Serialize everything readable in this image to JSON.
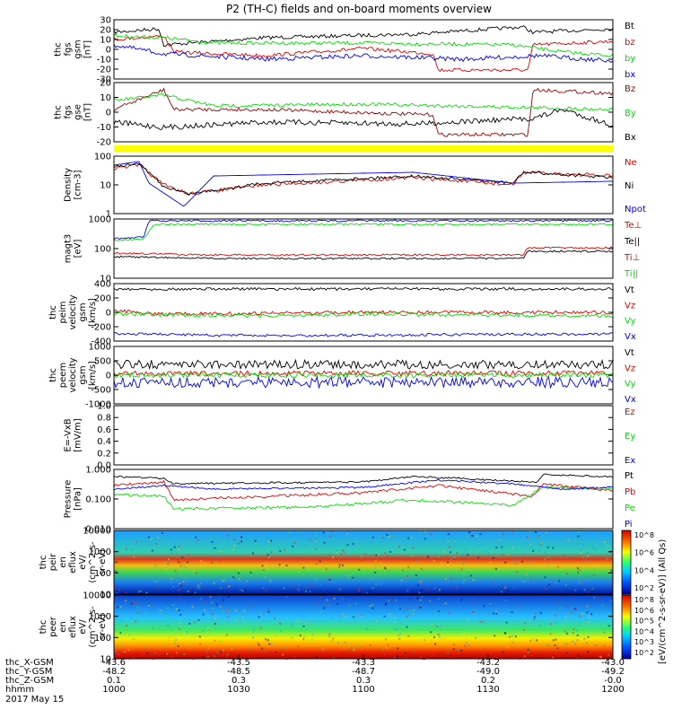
{
  "title": "P2 (TH-C) fields and on-board moments overview",
  "colors": {
    "black": "#000000",
    "red": "#e00000",
    "green": "#00dd00",
    "blue": "#0000ee",
    "darkred": "#9a0000",
    "yellow": "#ffff00",
    "navy": "#000080"
  },
  "panels": [
    {
      "ylabel": [
        "thc",
        "fgs",
        "gsm",
        "[nT]"
      ],
      "ticks": [
        "30",
        "20",
        "10",
        "0",
        "-10",
        "-20",
        "-30"
      ],
      "legend": [
        {
          "text": "Bt",
          "color": "black"
        },
        {
          "text": "bz",
          "color": "red"
        },
        {
          "text": "by",
          "color": "green"
        },
        {
          "text": "bx",
          "color": "blue"
        }
      ]
    },
    {
      "ylabel": [
        "thc",
        "fgs",
        "gse",
        "[nT]"
      ],
      "ticks": [
        "20",
        "10",
        "0",
        "-10",
        "-20"
      ],
      "legend": [
        {
          "text": "Bz",
          "color": "darkred"
        },
        {
          "text": "By",
          "color": "green"
        },
        {
          "text": "Bx",
          "color": "black"
        }
      ]
    },
    {
      "ylabel": [
        "Density",
        "[cm-3]"
      ],
      "ticks": [
        "100",
        "10",
        "1"
      ],
      "legend": [
        {
          "text": "Ne",
          "color": "red"
        },
        {
          "text": "Ni",
          "color": "black"
        },
        {
          "text": "Npot",
          "color": "blue"
        }
      ]
    },
    {
      "ylabel": [
        "magt3",
        "[eV]"
      ],
      "ticks": [
        "1000",
        "100",
        "10"
      ],
      "legend": [
        {
          "text": "Te⊥",
          "color": "red"
        },
        {
          "text": "Te||",
          "color": "black"
        },
        {
          "text": "Ti⊥",
          "color": "red"
        },
        {
          "text": "Ti||",
          "color": "green"
        }
      ]
    },
    {
      "ylabel": [
        "thc",
        "peim",
        "velocity",
        "gsm",
        "[km/s]"
      ],
      "ticks": [
        "400",
        "200",
        "0",
        "-200",
        "-400"
      ],
      "legend": [
        {
          "text": "Vt",
          "color": "black"
        },
        {
          "text": "Vz",
          "color": "red"
        },
        {
          "text": "Vy",
          "color": "green"
        },
        {
          "text": "Vx",
          "color": "blue"
        }
      ]
    },
    {
      "ylabel": [
        "thc",
        "peem",
        "velocity",
        "gsm",
        "[km/s]"
      ],
      "ticks": [
        "1000",
        "500",
        "0",
        "-500",
        "-1000"
      ],
      "legend": [
        {
          "text": "Vt",
          "color": "black"
        },
        {
          "text": "Vz",
          "color": "red"
        },
        {
          "text": "Vy",
          "color": "green"
        },
        {
          "text": "Vx",
          "color": "blue"
        }
      ]
    },
    {
      "ylabel": [
        "E=-VxB",
        "[mV/m]"
      ],
      "ticks": [
        "1.0",
        "0.8",
        "0.6",
        "0.4",
        "0.2",
        "0.0"
      ],
      "legend": [
        {
          "text": "Ez",
          "color": "red"
        },
        {
          "text": "Ey",
          "color": "green"
        },
        {
          "text": "Ex",
          "color": "blue"
        }
      ]
    },
    {
      "ylabel": [
        "Pressure",
        "[nPa]"
      ],
      "ticks": [
        "1.000",
        "0.100",
        "0.010"
      ],
      "legend": [
        {
          "text": "Pt",
          "color": "black"
        },
        {
          "text": "Pb",
          "color": "red"
        },
        {
          "text": "Pe",
          "color": "green"
        },
        {
          "text": "Pi",
          "color": "blue"
        }
      ]
    },
    {
      "ylabel": [
        "thc",
        "peir",
        "en",
        "eflux",
        "eV/",
        "(cm^2-s-",
        "sr-eV)"
      ],
      "ticks": [
        "10000",
        "1000",
        "100",
        "10"
      ],
      "legend": []
    },
    {
      "ylabel": [
        "thc",
        "peer",
        "en",
        "eflux",
        "eV/",
        "(cm^2-s-",
        "sr-eV)"
      ],
      "ticks": [
        "10000",
        "1000",
        "100",
        "10"
      ],
      "legend": []
    }
  ],
  "colorbar": {
    "label": "[eV/(cm^2-s-sr-eV)] (All Qs)",
    "upper_ticks": [
      "10^8",
      "10^6",
      "10^4",
      "10^2"
    ],
    "lower_ticks": [
      "10^8",
      "10^6",
      "10^5",
      "10^4",
      "10^3",
      "10^2"
    ]
  },
  "x_axis": {
    "row_labels": [
      "thc_X-GSM",
      "thc_Y-GSM",
      "thc_Z-GSM",
      "hhmm"
    ],
    "date": "2017 May 15",
    "columns": [
      [
        "-43.6",
        "-48.2",
        "0.1",
        "1000"
      ],
      [
        "-43.5",
        "-48.5",
        "0.3",
        "1030"
      ],
      [
        "-43.3",
        "-48.7",
        "0.3",
        "1100"
      ],
      [
        "-43.2",
        "-49.0",
        "0.2",
        "1130"
      ],
      [
        "-43.0",
        "-49.2",
        "-0.0",
        "1200"
      ]
    ]
  },
  "chart_data": {
    "type": "line",
    "title": "P2 (TH-C) fields and on-board moments overview",
    "x": [
      "1000",
      "1030",
      "1100",
      "1130",
      "1200"
    ],
    "series": [
      {
        "name": "Bt",
        "values": [
          18,
          22,
          22,
          25,
          17
        ]
      },
      {
        "name": "bz",
        "values": [
          10,
          -2,
          4,
          -18,
          12
        ]
      },
      {
        "name": "by",
        "values": [
          14,
          8,
          8,
          6,
          3
        ]
      },
      {
        "name": "bx",
        "values": [
          5,
          -8,
          -6,
          -9,
          -8
        ]
      },
      {
        "name": "Ne",
        "values": [
          30,
          20,
          25,
          35,
          25
        ]
      },
      {
        "name": "Ni",
        "values": [
          30,
          22,
          26,
          33,
          25
        ]
      },
      {
        "name": "Npot",
        "values": [
          40,
          20,
          25,
          35,
          22
        ]
      },
      {
        "name": "Te⊥",
        "values": [
          500,
          700,
          700,
          700,
          700
        ]
      },
      {
        "name": "Te||",
        "values": [
          500,
          800,
          800,
          800,
          800
        ]
      },
      {
        "name": "Ti⊥",
        "values": [
          15,
          20,
          20,
          40,
          40
        ]
      },
      {
        "name": "Ti||",
        "values": [
          15,
          18,
          18,
          30,
          30
        ]
      },
      {
        "name": "Vt (peim)",
        "values": [
          350,
          350,
          330,
          340,
          370
        ]
      },
      {
        "name": "Vz (peim)",
        "values": [
          0,
          -40,
          -20,
          -40,
          -10
        ]
      },
      {
        "name": "Vy (peim)",
        "values": [
          -20,
          -40,
          -30,
          -80,
          -60
        ]
      },
      {
        "name": "Vx (peim)",
        "values": [
          -330,
          -340,
          -320,
          -340,
          -370
        ]
      },
      {
        "name": "Pt",
        "values": [
          0.35,
          0.2,
          0.22,
          0.4,
          0.4
        ]
      },
      {
        "name": "Pb",
        "values": [
          0.25,
          0.05,
          0.1,
          0.3,
          0.2
        ]
      },
      {
        "name": "Pe",
        "values": [
          0.1,
          0.006,
          0.015,
          0.06,
          0.08
        ]
      },
      {
        "name": "Pi",
        "values": [
          0.2,
          0.15,
          0.18,
          0.3,
          0.2
        ]
      }
    ]
  }
}
